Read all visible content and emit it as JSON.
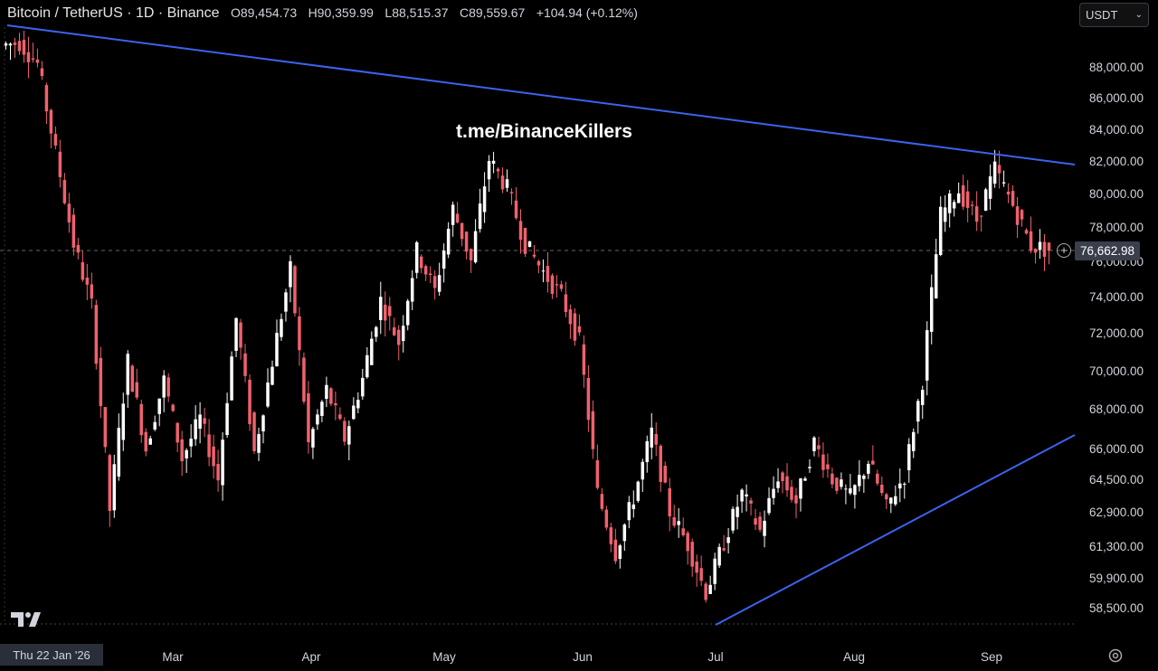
{
  "header": {
    "symbol": "Bitcoin / TetherUS · 1D · Binance",
    "open": "O89,454.73",
    "high": "H90,359.99",
    "low": "L88,515.37",
    "close": "C89,559.67",
    "change": "+104.94 (+0.12%)"
  },
  "currency_select": {
    "value": "USDT"
  },
  "watermark": "t.me/BinanceKillers",
  "date_badge": "Thu 22 Jan '26",
  "last_price": "76,662.98",
  "colors": {
    "up": "#ffffff",
    "down": "#f0616d",
    "trendline": "#3b63f0",
    "background": "#000000"
  },
  "icons": {
    "logo": "tradingview-logo-icon",
    "settings": "gear-icon",
    "add": "plus-circle-icon"
  },
  "chart_data": {
    "type": "candlestick",
    "x_ticks": [
      "Mar",
      "Apr",
      "May",
      "Jun",
      "Jul",
      "Aug",
      "Sep"
    ],
    "y_ticks": [
      "88,000.00",
      "86,000.00",
      "84,000.00",
      "82,000.00",
      "80,000.00",
      "78,000.00",
      "76,000.00",
      "74,000.00",
      "72,000.00",
      "70,000.00",
      "68,000.00",
      "66,000.00",
      "64,500.00",
      "62,900.00",
      "61,300.00",
      "59,900.00",
      "58,500.00"
    ],
    "y_tick_values": [
      88000,
      86000,
      84000,
      82000,
      80000,
      78000,
      76000,
      74000,
      72000,
      70000,
      68000,
      66000,
      64500,
      62900,
      61300,
      59900,
      58500
    ],
    "y_scale": "log",
    "candles_approx": [
      {
        "x": 0,
        "o": 89400,
        "c": 89600
      },
      {
        "x": 1,
        "o": 89600,
        "c": 88200
      },
      {
        "x": 2,
        "o": 88200,
        "c": 82500
      },
      {
        "x": 3,
        "o": 82500,
        "c": 77000
      },
      {
        "x": 4,
        "o": 77000,
        "c": 73500
      },
      {
        "x": 5,
        "o": 73500,
        "c": 63000
      },
      {
        "x": 6,
        "o": 63000,
        "c": 70500
      },
      {
        "x": 7,
        "o": 70500,
        "c": 66000
      },
      {
        "x": 8,
        "o": 66000,
        "c": 69500
      },
      {
        "x": 9,
        "o": 69500,
        "c": 65500
      },
      {
        "x": 10,
        "o": 65500,
        "c": 67500
      },
      {
        "x": 11,
        "o": 67500,
        "c": 64500
      },
      {
        "x": 12,
        "o": 64500,
        "c": 72800
      },
      {
        "x": 13,
        "o": 72800,
        "c": 65800
      },
      {
        "x": 14,
        "o": 65800,
        "c": 70500
      },
      {
        "x": 15,
        "o": 70500,
        "c": 75500
      },
      {
        "x": 16,
        "o": 75500,
        "c": 66200
      },
      {
        "x": 17,
        "o": 66200,
        "c": 69000
      },
      {
        "x": 18,
        "o": 69000,
        "c": 66500
      },
      {
        "x": 19,
        "o": 66500,
        "c": 69600
      },
      {
        "x": 20,
        "o": 69600,
        "c": 73800
      },
      {
        "x": 21,
        "o": 73800,
        "c": 71500
      },
      {
        "x": 22,
        "o": 71500,
        "c": 76600
      },
      {
        "x": 23,
        "o": 76600,
        "c": 74300
      },
      {
        "x": 24,
        "o": 74300,
        "c": 79100
      },
      {
        "x": 25,
        "o": 79100,
        "c": 76000
      },
      {
        "x": 26,
        "o": 76000,
        "c": 82100
      },
      {
        "x": 27,
        "o": 82100,
        "c": 80300
      },
      {
        "x": 28,
        "o": 80300,
        "c": 77000
      },
      {
        "x": 29,
        "o": 77000,
        "c": 75400
      },
      {
        "x": 30,
        "o": 75400,
        "c": 74000
      },
      {
        "x": 31,
        "o": 74000,
        "c": 71500
      },
      {
        "x": 32,
        "o": 71500,
        "c": 63800
      },
      {
        "x": 33,
        "o": 63800,
        "c": 61000
      },
      {
        "x": 34,
        "o": 61000,
        "c": 63600
      },
      {
        "x": 35,
        "o": 63600,
        "c": 66800
      },
      {
        "x": 36,
        "o": 66800,
        "c": 62900
      },
      {
        "x": 37,
        "o": 62900,
        "c": 61400
      },
      {
        "x": 38,
        "o": 61400,
        "c": 59200
      },
      {
        "x": 39,
        "o": 59200,
        "c": 61500
      },
      {
        "x": 40,
        "o": 61500,
        "c": 63800
      },
      {
        "x": 41,
        "o": 63800,
        "c": 62000
      },
      {
        "x": 42,
        "o": 62000,
        "c": 64700
      },
      {
        "x": 43,
        "o": 64700,
        "c": 63400
      },
      {
        "x": 44,
        "o": 63400,
        "c": 66300
      },
      {
        "x": 45,
        "o": 66300,
        "c": 64500
      },
      {
        "x": 46,
        "o": 64500,
        "c": 63600
      },
      {
        "x": 47,
        "o": 63600,
        "c": 65400
      },
      {
        "x": 48,
        "o": 65400,
        "c": 63100
      },
      {
        "x": 49,
        "o": 63100,
        "c": 64700
      },
      {
        "x": 50,
        "o": 64700,
        "c": 69500
      },
      {
        "x": 51,
        "o": 69500,
        "c": 78700
      },
      {
        "x": 52,
        "o": 78700,
        "c": 80200
      },
      {
        "x": 53,
        "o": 80200,
        "c": 78400
      },
      {
        "x": 54,
        "o": 78400,
        "c": 81500
      },
      {
        "x": 55,
        "o": 81500,
        "c": 79300
      },
      {
        "x": 56,
        "o": 79300,
        "c": 76900
      },
      {
        "x": 57,
        "o": 76900,
        "c": 76662
      }
    ],
    "trendlines": [
      {
        "name": "upper",
        "from_price": 89800,
        "to_price": 81900
      },
      {
        "name": "lower",
        "from_price": 58200,
        "to_price": 66500
      }
    ],
    "horizontal_line": 76662.98
  }
}
